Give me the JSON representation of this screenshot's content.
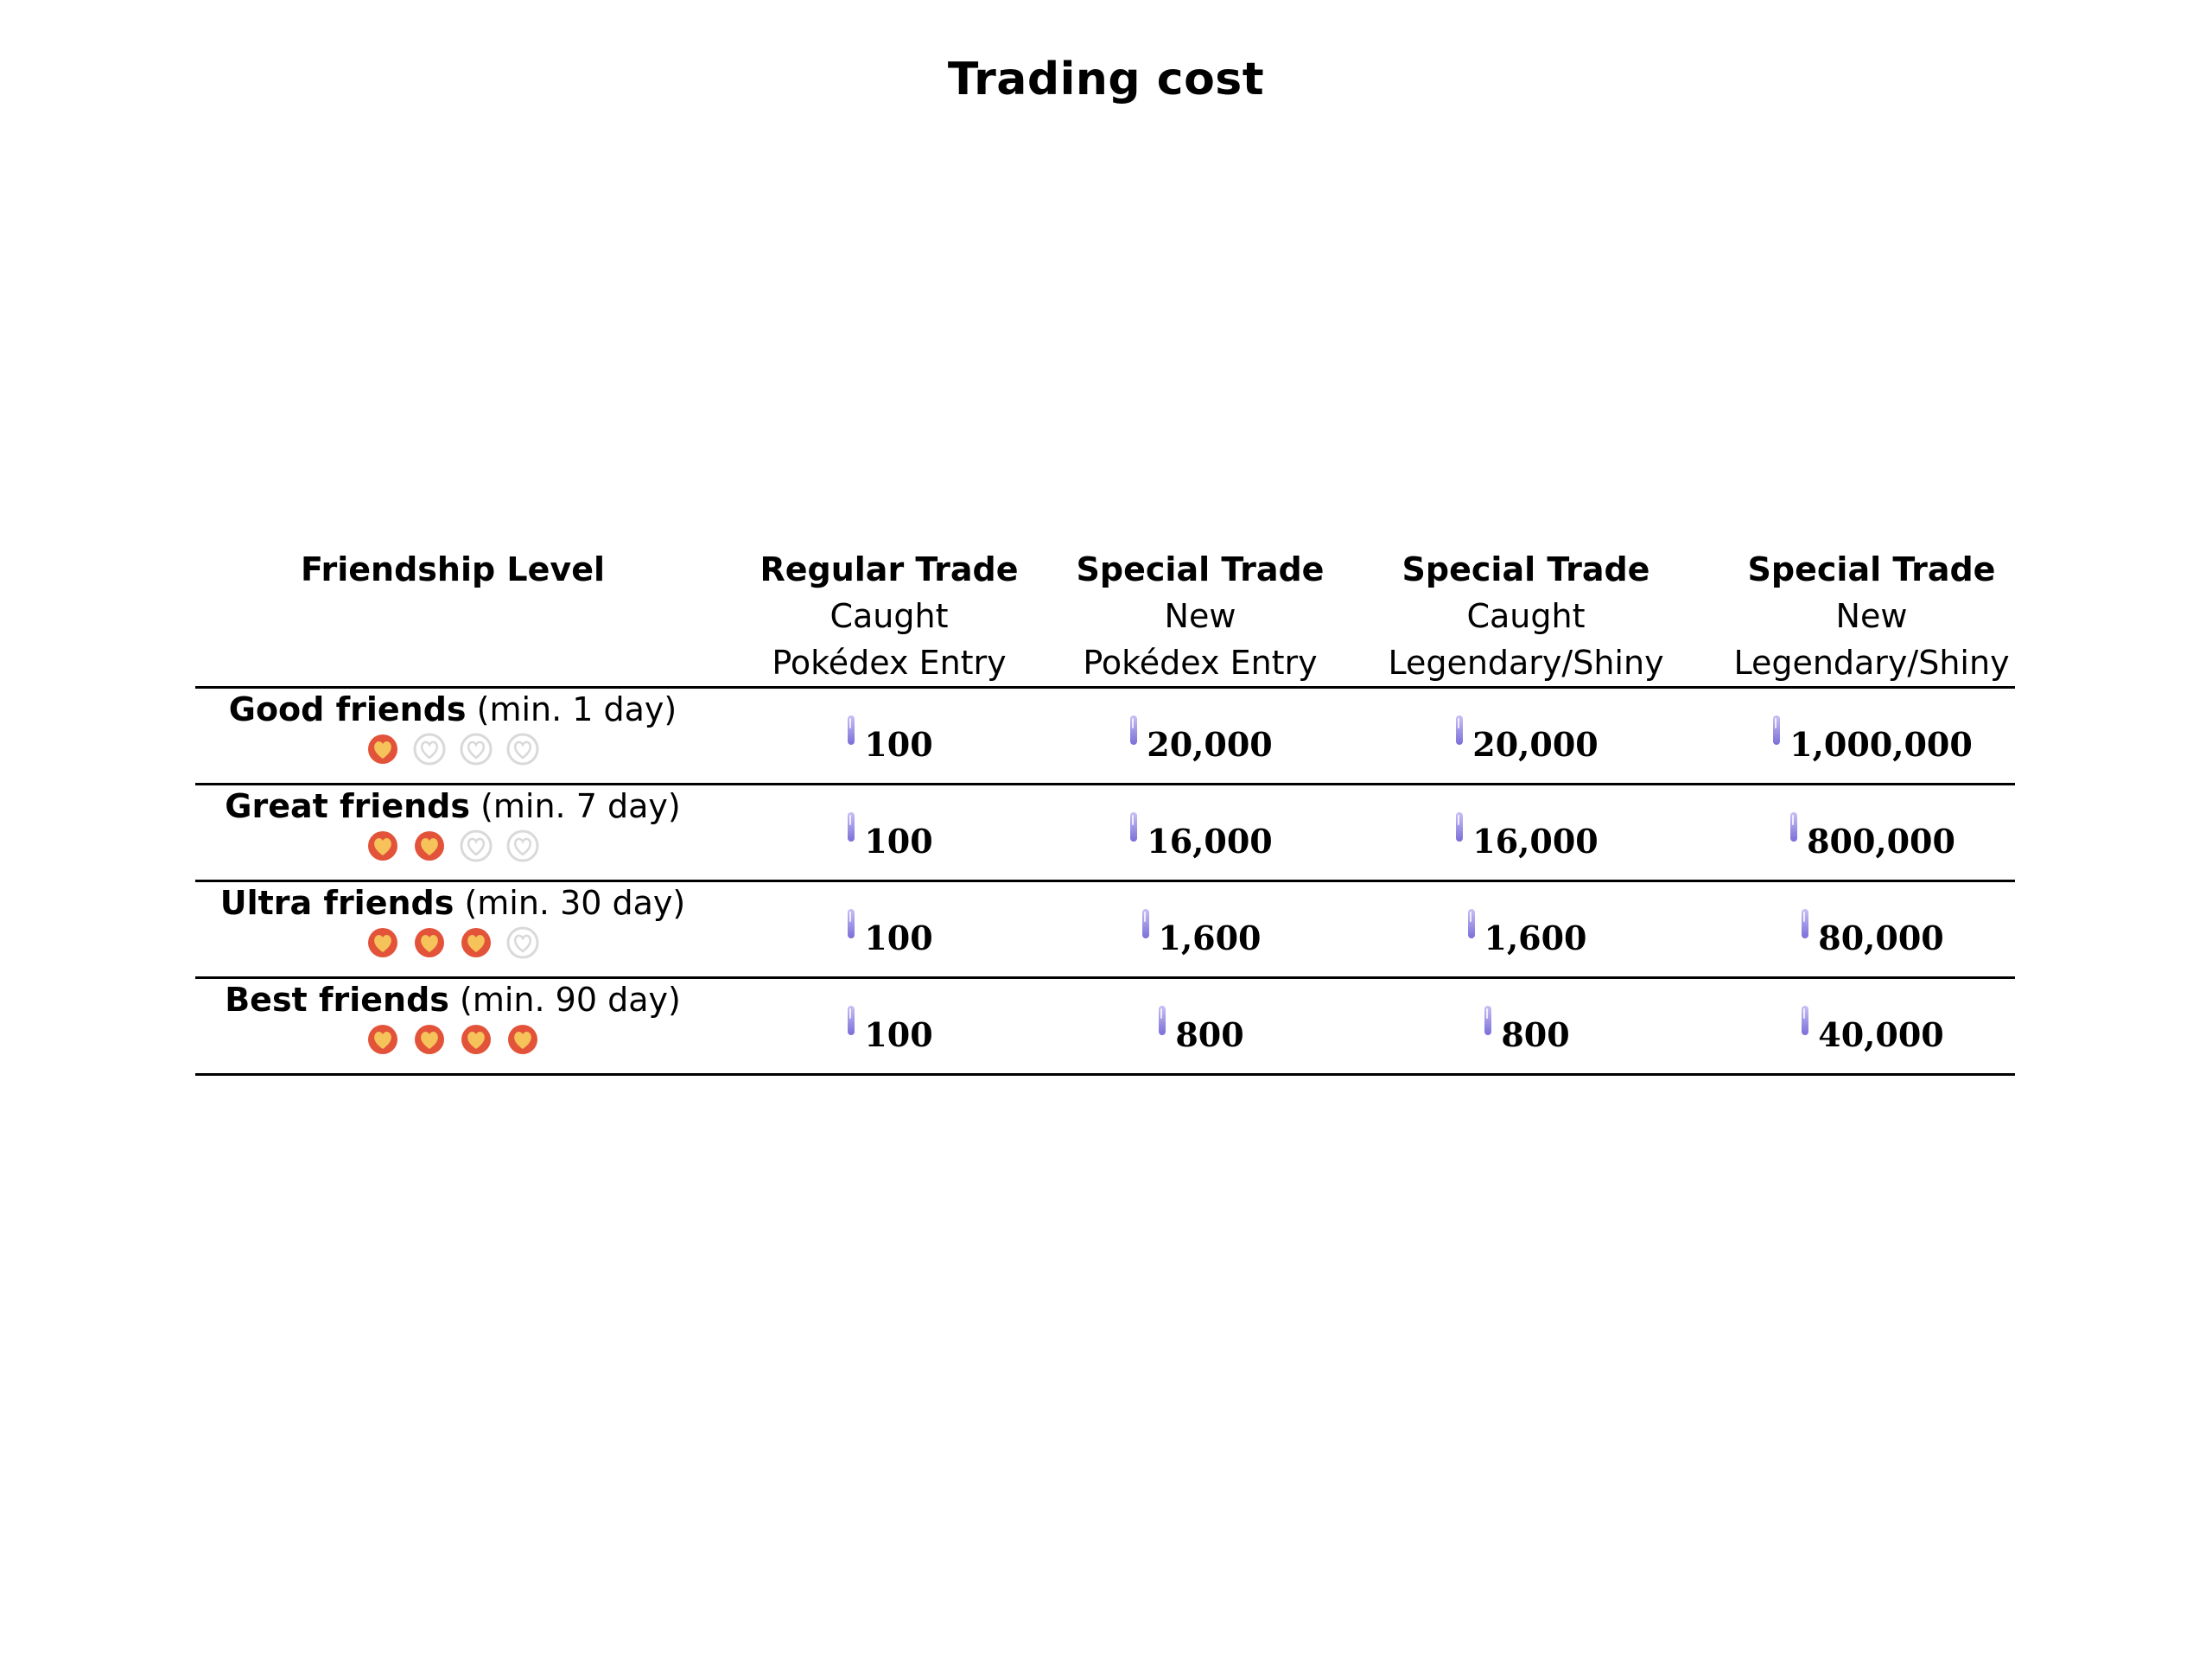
{
  "title": "Trading cost",
  "table": {
    "headers": [
      {
        "bold": "Friendship Level",
        "line2": "",
        "line3": ""
      },
      {
        "bold": "Regular Trade",
        "line2": "Caught",
        "line3": "Pokédex Entry"
      },
      {
        "bold": "Special Trade",
        "line2": "New",
        "line3": "Pokédex Entry"
      },
      {
        "bold": "Special Trade",
        "line2": "Caught",
        "line3": "Legendary/Shiny"
      },
      {
        "bold": "Special Trade",
        "line2": "New",
        "line3": "Legendary/Shiny"
      }
    ],
    "rows": [
      {
        "name": "Good friends",
        "min": "(min. 1 day)",
        "hearts_filled": 1,
        "hearts_total": 4,
        "values": [
          "100",
          "20,000",
          "20,000",
          "1,000,000"
        ]
      },
      {
        "name": "Great friends",
        "min": "(min. 7 day)",
        "hearts_filled": 2,
        "hearts_total": 4,
        "values": [
          "100",
          "16,000",
          "16,000",
          "800,000"
        ]
      },
      {
        "name": "Ultra friends",
        "min": "(min. 30 day)",
        "hearts_filled": 3,
        "hearts_total": 4,
        "values": [
          "100",
          "1,600",
          "1,600",
          "80,000"
        ]
      },
      {
        "name": "Best friends",
        "min": "(min. 90 day)",
        "hearts_filled": 4,
        "hearts_total": 4,
        "values": [
          "100",
          "800",
          "800",
          "40,000"
        ]
      }
    ]
  },
  "icons": {
    "value_icon": "stardust-icon",
    "friendship_filled": "heart-filled-icon",
    "friendship_empty": "heart-empty-icon"
  },
  "colors": {
    "heart_fill": "#f6c25a",
    "heart_ring": "#e2533a",
    "heart_empty": "#d9d9d9",
    "stardust_top": "#c9c0f5",
    "stardust_bottom": "#7a6fd8"
  }
}
